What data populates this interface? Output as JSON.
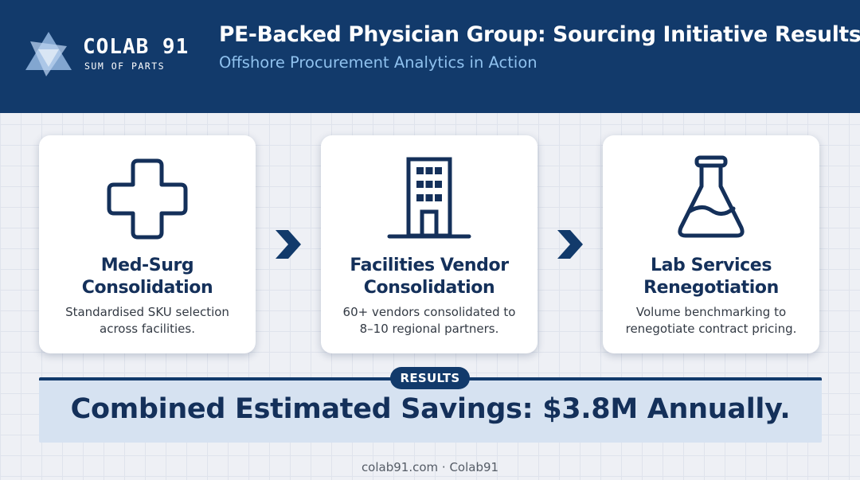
{
  "header": {
    "logo_name": "COLAB 91",
    "logo_tagline": "SUM OF PARTS",
    "title": "PE-Backed Physician Group: Sourcing Initiative Results",
    "subtitle": "Offshore Procurement Analytics in Action"
  },
  "cards": [
    {
      "icon": "medical-cross-icon",
      "title_lines": [
        "Med-Surg",
        "Consolidation"
      ],
      "desc_lines": [
        "Standardised SKU selection",
        "across facilities."
      ]
    },
    {
      "icon": "office-building-icon",
      "title_lines": [
        "Facilities Vendor",
        "Consolidation"
      ],
      "desc_lines": [
        "60+ vendors consolidated to",
        "8–10 regional partners."
      ]
    },
    {
      "icon": "lab-flask-icon",
      "title_lines": [
        "Lab Services",
        "Renegotiation"
      ],
      "desc_lines": [
        "Volume benchmarking to",
        "renegotiate contract pricing."
      ]
    }
  ],
  "results": {
    "badge": "RESULTS",
    "headline": "Combined Estimated Savings: $3.8M Annually."
  },
  "footer": "colab91.com · Colab91",
  "colors": {
    "navy": "#123a6b",
    "dark_text": "#14305a",
    "subtitle_blue": "#8fc1ee",
    "results_bg": "#d6e2f1"
  }
}
